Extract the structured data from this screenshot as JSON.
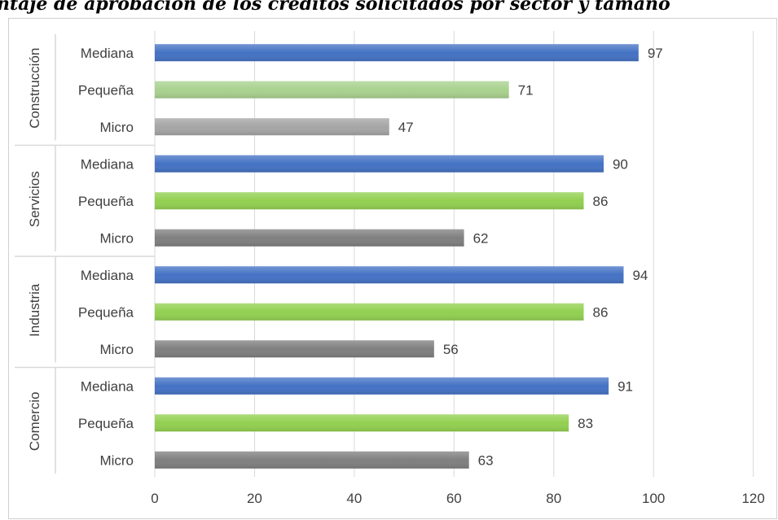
{
  "chart_data": {
    "type": "bar",
    "orientation": "horizontal",
    "title": "ntaje de aprobación de los créditos solicitados por sector y tamaño",
    "xlim": [
      0,
      120
    ],
    "x_ticks": [
      0,
      20,
      40,
      60,
      80,
      100,
      120
    ],
    "grid": true,
    "groups": [
      {
        "name": "Construcción",
        "bars": [
          {
            "category": "Mediana",
            "value": 97,
            "color": "#4472C4"
          },
          {
            "category": "Pequeña",
            "value": 71,
            "color": "#A9D18E"
          },
          {
            "category": "Micro",
            "value": 47,
            "color": "#A5A5A5"
          }
        ]
      },
      {
        "name": "Servicios",
        "bars": [
          {
            "category": "Mediana",
            "value": 90,
            "color": "#4472C4"
          },
          {
            "category": "Pequeña",
            "value": 86,
            "color": "#92D050"
          },
          {
            "category": "Micro",
            "value": 62,
            "color": "#7F7F7F"
          }
        ]
      },
      {
        "name": "Industria",
        "bars": [
          {
            "category": "Mediana",
            "value": 94,
            "color": "#4472C4"
          },
          {
            "category": "Pequeña",
            "value": 86,
            "color": "#92D050"
          },
          {
            "category": "Micro",
            "value": 56,
            "color": "#7F7F7F"
          }
        ]
      },
      {
        "name": "Comercio",
        "bars": [
          {
            "category": "Mediana",
            "value": 91,
            "color": "#4472C4"
          },
          {
            "category": "Pequeña",
            "value": 83,
            "color": "#92D050"
          },
          {
            "category": "Micro",
            "value": 63,
            "color": "#7F7F7F"
          }
        ]
      }
    ]
  }
}
